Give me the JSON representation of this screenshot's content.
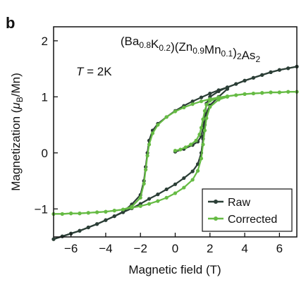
{
  "chart_data": {
    "type": "line",
    "panel_label": "b",
    "title": {
      "parts": [
        {
          "t": "(Ba"
        },
        {
          "t": "0.8",
          "sub": true
        },
        {
          "t": "K"
        },
        {
          "t": "0.2",
          "sub": true
        },
        {
          "t": ")(Zn"
        },
        {
          "t": "0.9",
          "sub": true
        },
        {
          "t": "Mn"
        },
        {
          "t": "0.1",
          "sub": true
        },
        {
          "t": ")"
        },
        {
          "t": "2",
          "sub": true
        },
        {
          "t": "As"
        },
        {
          "t": "2",
          "sub": true
        }
      ]
    },
    "annotation": {
      "symbol": "T",
      "rest": " = 2K"
    },
    "xlabel": "Magnetic field (T)",
    "ylabel": {
      "prefix": "Magnetization (",
      "mu": "μ",
      "sub": "B",
      "suffix": "/Mn)"
    },
    "xlim": [
      -7,
      7
    ],
    "ylim": [
      -1.5,
      2.25
    ],
    "xticks": [
      -6,
      -4,
      -2,
      0,
      2,
      4,
      6
    ],
    "yticks": [
      -1,
      0,
      1,
      2
    ],
    "xtick_labels": [
      "−6",
      "−4",
      "−2",
      "0",
      "2",
      "4",
      "6"
    ],
    "ytick_labels": [
      "−1",
      "0",
      "1",
      "2"
    ],
    "grid": false,
    "legend_position": "bottom-right",
    "series": [
      {
        "name": "Raw",
        "color": "#2b3e36",
        "segments": [
          {
            "x": [
              0,
              0.5,
              1.0,
              1.3,
              1.5,
              1.6,
              1.7,
              1.8,
              2.0,
              2.5,
              3.0,
              3.5,
              4.0,
              4.5,
              5.0,
              5.5,
              6.0,
              6.5,
              7.0
            ],
            "y": [
              0.02,
              0.07,
              0.14,
              0.2,
              0.3,
              0.45,
              0.65,
              0.88,
              1.0,
              1.1,
              1.17,
              1.23,
              1.29,
              1.34,
              1.39,
              1.44,
              1.48,
              1.51,
              1.54
            ]
          },
          {
            "x": [
              7.0,
              6.5,
              6.0,
              5.5,
              5.0,
              4.5,
              4.0,
              3.5,
              3.0,
              2.5,
              2.0,
              1.5,
              1.0,
              0.5,
              0.0,
              -0.5,
              -1.0,
              -1.3,
              -1.5,
              -1.6,
              -1.7,
              -1.8,
              -2.0,
              -2.5,
              -3.0,
              -3.5,
              -4.0,
              -4.5,
              -5.0,
              -5.5,
              -6.0,
              -6.5,
              -7.0
            ],
            "y": [
              1.54,
              1.51,
              1.48,
              1.44,
              1.39,
              1.34,
              1.29,
              1.23,
              1.17,
              1.12,
              1.06,
              0.99,
              0.92,
              0.84,
              0.75,
              0.64,
              0.52,
              0.4,
              0.22,
              0.0,
              -0.25,
              -0.5,
              -0.75,
              -0.92,
              -1.05,
              -1.13,
              -1.2,
              -1.27,
              -1.33,
              -1.39,
              -1.44,
              -1.49,
              -1.54
            ]
          },
          {
            "x": [
              -7.0,
              -6.5,
              -6.0,
              -5.5,
              -5.0,
              -4.5,
              -4.0,
              -3.5,
              -3.0,
              -2.5,
              -2.0,
              -1.5,
              -1.0,
              -0.5,
              0.0,
              0.5,
              1.0,
              1.3,
              1.5,
              1.6,
              1.7,
              1.8,
              2.0,
              2.5,
              3.0
            ],
            "y": [
              -1.54,
              -1.49,
              -1.44,
              -1.39,
              -1.33,
              -1.27,
              -1.2,
              -1.13,
              -1.06,
              -0.99,
              -0.91,
              -0.82,
              -0.74,
              -0.65,
              -0.56,
              -0.45,
              -0.33,
              -0.2,
              0.0,
              0.25,
              0.5,
              0.72,
              0.85,
              1.0,
              1.14
            ]
          }
        ]
      },
      {
        "name": "Corrected",
        "color": "#66bb44",
        "segments": [
          {
            "x": [
              0,
              0.3,
              0.6,
              0.9,
              1.2,
              1.4,
              1.5,
              1.6,
              1.7,
              1.8,
              2.0,
              2.5,
              3.0,
              3.5,
              4.0,
              4.5,
              5.0,
              5.5,
              6.0,
              6.5,
              7.0
            ],
            "y": [
              0.04,
              0.06,
              0.1,
              0.15,
              0.22,
              0.33,
              0.45,
              0.6,
              0.75,
              0.86,
              0.93,
              0.98,
              1.01,
              1.03,
              1.05,
              1.06,
              1.07,
              1.08,
              1.08,
              1.09,
              1.09
            ]
          },
          {
            "x": [
              7.0,
              6.5,
              6.0,
              5.5,
              5.0,
              4.5,
              4.0,
              3.5,
              3.0,
              2.5,
              2.0,
              1.5,
              1.0,
              0.5,
              0.0,
              -0.5,
              -1.0,
              -1.3,
              -1.5,
              -1.6,
              -1.7,
              -1.8,
              -2.0,
              -2.5,
              -3.0,
              -3.5,
              -4.0,
              -4.5,
              -5.0,
              -5.5,
              -6.0,
              -6.5,
              -7.0
            ],
            "y": [
              1.09,
              1.09,
              1.08,
              1.08,
              1.07,
              1.06,
              1.05,
              1.03,
              1.01,
              0.99,
              0.96,
              0.92,
              0.87,
              0.81,
              0.74,
              0.64,
              0.5,
              0.35,
              0.15,
              -0.05,
              -0.3,
              -0.55,
              -0.8,
              -0.96,
              -1.01,
              -1.03,
              -1.05,
              -1.06,
              -1.07,
              -1.08,
              -1.08,
              -1.09,
              -1.09
            ]
          },
          {
            "x": [
              -7.0,
              -6.5,
              -6.0,
              -5.5,
              -5.0,
              -4.5,
              -4.0,
              -3.5,
              -3.0,
              -2.5,
              -2.0,
              -1.5,
              -1.0,
              -0.5,
              0.0,
              0.5,
              1.0,
              1.3,
              1.5,
              1.6,
              1.7,
              1.8,
              2.0,
              2.5,
              3.0
            ],
            "y": [
              -1.09,
              -1.09,
              -1.08,
              -1.08,
              -1.07,
              -1.06,
              -1.05,
              -1.03,
              -1.01,
              -0.98,
              -0.95,
              -0.91,
              -0.86,
              -0.8,
              -0.72,
              -0.62,
              -0.48,
              -0.32,
              -0.1,
              0.15,
              0.4,
              0.62,
              0.82,
              0.95,
              1.0
            ]
          }
        ]
      }
    ]
  }
}
